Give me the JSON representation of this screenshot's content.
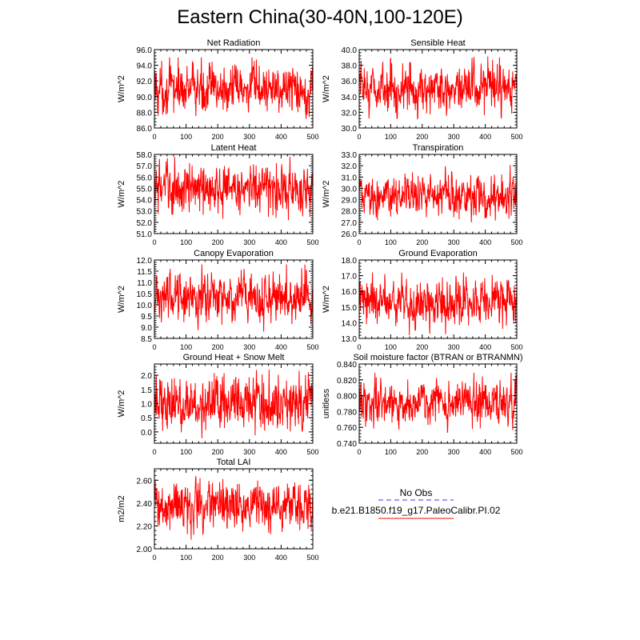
{
  "figure": {
    "title": "Eastern China(30-40N,100-120E)",
    "x_ticks": [
      0,
      100,
      200,
      300,
      400,
      500
    ],
    "xlim": [
      0,
      500
    ],
    "series_color": "#ff0000",
    "obs_color": "#3333ff"
  },
  "legend": {
    "obs_label": "No Obs",
    "case_label": "b.e21.B1850.f19_g17.PaleoCalibr.PI.02"
  },
  "chart_data": [
    {
      "type": "line",
      "title": "Net Radiation",
      "ylabel": "W/m^2",
      "ylim": [
        86,
        96
      ],
      "yticks": [
        "86.0",
        "88.0",
        "90.0",
        "92.0",
        "94.0",
        "96.0"
      ],
      "x_count": 500,
      "series": [
        {
          "name": "b.e21.B1850.f19_g17.PaleoCalibr.PI.02",
          "mean": 91.0,
          "range": [
            86.8,
            95.0
          ]
        }
      ]
    },
    {
      "type": "line",
      "title": "Sensible Heat",
      "ylabel": "W/m^2",
      "ylim": [
        30,
        40
      ],
      "yticks": [
        "30.0",
        "32.0",
        "34.0",
        "36.0",
        "38.0",
        "40.0"
      ],
      "x_count": 500,
      "series": [
        {
          "name": "b.e21.B1850.f19_g17.PaleoCalibr.PI.02",
          "mean": 35.0,
          "range": [
            31.2,
            39.5
          ]
        }
      ]
    },
    {
      "type": "line",
      "title": "Latent Heat",
      "ylabel": "W/m^2",
      "ylim": [
        51,
        58
      ],
      "yticks": [
        "51.0",
        "52.0",
        "53.0",
        "54.0",
        "55.0",
        "56.0",
        "57.0",
        "58.0"
      ],
      "x_count": 500,
      "series": [
        {
          "name": "b.e21.B1850.f19_g17.PaleoCalibr.PI.02",
          "mean": 55.0,
          "range": [
            51.5,
            57.8
          ]
        }
      ]
    },
    {
      "type": "line",
      "title": "Transpiration",
      "ylabel": "W/m^2",
      "ylim": [
        26,
        33
      ],
      "yticks": [
        "26.0",
        "27.0",
        "28.0",
        "29.0",
        "30.0",
        "31.0",
        "32.0",
        "33.0"
      ],
      "x_count": 500,
      "series": [
        {
          "name": "b.e21.B1850.f19_g17.PaleoCalibr.PI.02",
          "mean": 29.3,
          "range": [
            27.0,
            32.6
          ]
        }
      ]
    },
    {
      "type": "line",
      "title": "Canopy Evaporation",
      "ylabel": "W/m^2",
      "ylim": [
        8.5,
        12
      ],
      "yticks": [
        "8.5",
        "9.0",
        "9.5",
        "10.0",
        "10.5",
        "11.0",
        "11.5",
        "12.0"
      ],
      "x_count": 500,
      "series": [
        {
          "name": "b.e21.B1850.f19_g17.PaleoCalibr.PI.02",
          "mean": 10.4,
          "range": [
            8.7,
            11.8
          ]
        }
      ]
    },
    {
      "type": "line",
      "title": "Ground Evaporation",
      "ylabel": "W/m^2",
      "ylim": [
        13,
        18
      ],
      "yticks": [
        "13.0",
        "14.0",
        "15.0",
        "16.0",
        "17.0",
        "18.0"
      ],
      "x_count": 500,
      "series": [
        {
          "name": "b.e21.B1850.f19_g17.PaleoCalibr.PI.02",
          "mean": 15.3,
          "range": [
            13.2,
            17.2
          ]
        }
      ]
    },
    {
      "type": "line",
      "title": "Ground Heat + Snow Melt",
      "ylabel": "W/m^2",
      "ylim": [
        -0.4,
        2.4
      ],
      "yticks": [
        "0.0",
        "0.5",
        "1.0",
        "1.5",
        "2.0"
      ],
      "ytick_values": [
        0,
        0.5,
        1,
        1.5,
        2
      ],
      "x_count": 500,
      "series": [
        {
          "name": "b.e21.B1850.f19_g17.PaleoCalibr.PI.02",
          "mean": 1.0,
          "range": [
            -0.3,
            2.2
          ]
        }
      ]
    },
    {
      "type": "line",
      "title": "Soil moisture factor (BTRAN or BTRANMN)",
      "ylabel": "unitless",
      "ylim": [
        0.74,
        0.84
      ],
      "yticks": [
        "0.740",
        "0.760",
        "0.780",
        "0.800",
        "0.820",
        "0.840"
      ],
      "x_count": 500,
      "series": [
        {
          "name": "b.e21.B1850.f19_g17.PaleoCalibr.PI.02",
          "mean": 0.792,
          "range": [
            0.751,
            0.829
          ]
        }
      ]
    },
    {
      "type": "line",
      "title": "Total LAI",
      "ylabel": "m2/m2",
      "ylim": [
        2.0,
        2.7
      ],
      "yticks": [
        "2.00",
        "2.20",
        "2.40",
        "2.60"
      ],
      "ytick_values": [
        2.0,
        2.2,
        2.4,
        2.6
      ],
      "x_count": 500,
      "series": [
        {
          "name": "b.e21.B1850.f19_g17.PaleoCalibr.PI.02",
          "mean": 2.38,
          "range": [
            2.08,
            2.64
          ]
        }
      ]
    }
  ]
}
